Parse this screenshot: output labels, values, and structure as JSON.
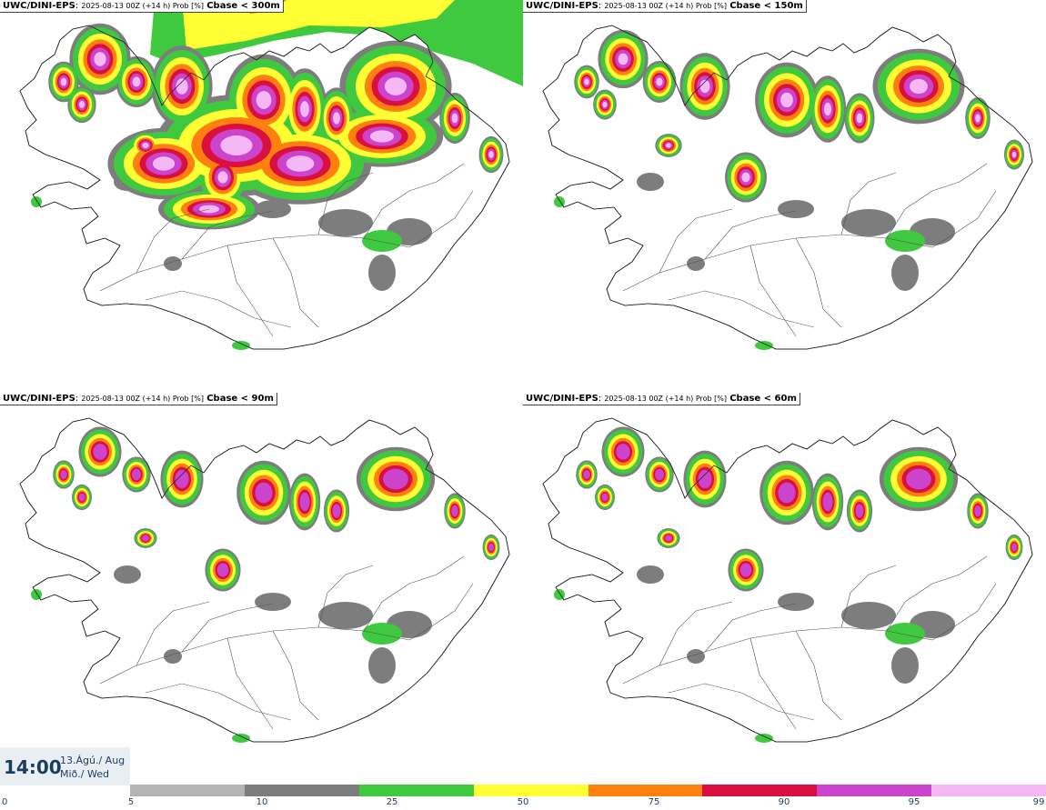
{
  "panels": [
    {
      "model": "UWC/DINI-EPS",
      "meta": "2025-08-13 00Z (+14 h) Prob [%]",
      "label": "Cbase < 300m",
      "level": 4
    },
    {
      "model": "UWC/DINI-EPS",
      "meta": "2025-08-13 00Z (+14 h) Prob [%]",
      "label": "Cbase < 150m",
      "level": 3
    },
    {
      "model": "UWC/DINI-EPS",
      "meta": "2025-08-13 00Z (+14 h) Prob [%]",
      "label": "Cbase < 90m",
      "level": 2
    },
    {
      "model": "UWC/DINI-EPS",
      "meta": "2025-08-13 00Z (+14 h) Prob [%]",
      "label": "Cbase < 60m",
      "level": 2
    }
  ],
  "time": {
    "clock": "14:00",
    "date_line1": "13.Ágú./ Aug",
    "date_line2": "Mið./ Wed"
  },
  "legend": {
    "ticks": [
      "0",
      "5",
      "10",
      "25",
      "50",
      "75",
      "90",
      "95",
      "99"
    ],
    "colors": [
      "#b4b4b4",
      "#7d7d7d",
      "#3fc93f",
      "#ffff33",
      "#ff7f0f",
      "#d90f3f",
      "#cc44cc",
      "#f5b8f5"
    ]
  }
}
